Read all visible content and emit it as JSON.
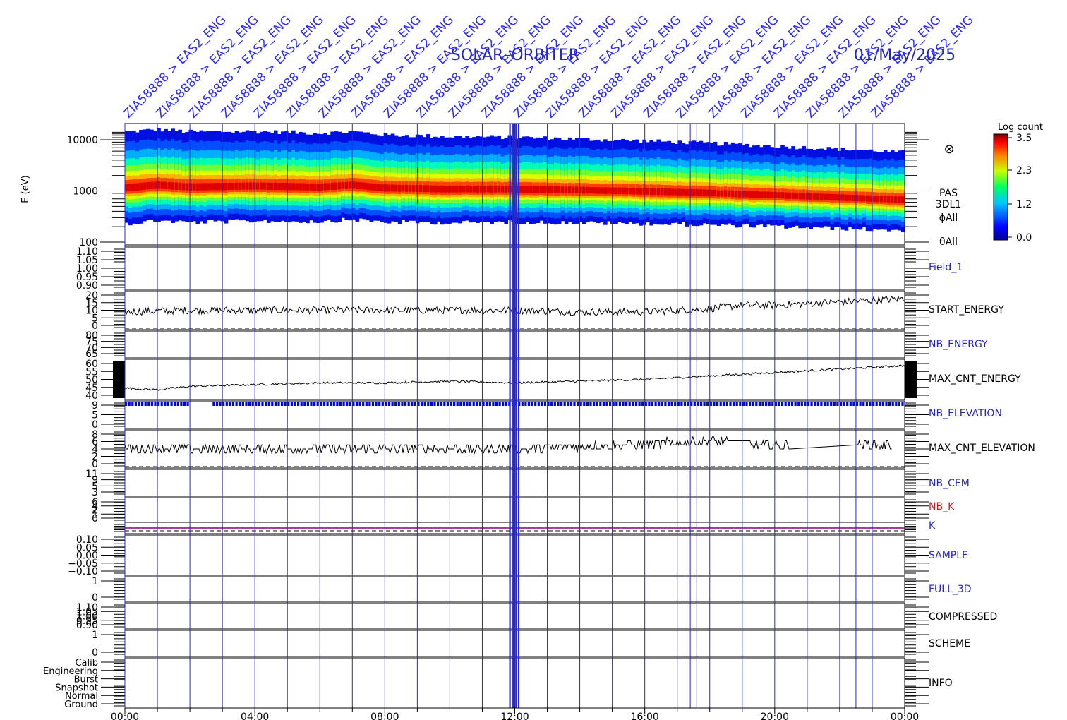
{
  "title": {
    "mission": "SOLAR–ORBITER",
    "date": "01/May/2025"
  },
  "commands": {
    "label": "ZIA58888 > EAS2_ENG",
    "count": 24
  },
  "x_axis": {
    "ticks": [
      "00:00",
      "04:00",
      "08:00",
      "12:00",
      "16:00",
      "20:00",
      "00:00"
    ],
    "minor_ticks_per_hour": 1
  },
  "spectrogram": {
    "ylabel": "E (eV)",
    "yticks": [
      "10000",
      "1000",
      "100"
    ],
    "side_labels": [
      "PAS",
      "3DL1",
      "ϕAll",
      "θAll"
    ],
    "symbol": "⊗",
    "colorbar": {
      "title": "Log count",
      "ticks": [
        "3.5",
        "2.3",
        "1.2",
        "0.0"
      ]
    }
  },
  "panels": [
    {
      "name": "Field_1",
      "color": "#2626b8",
      "ticks": [
        "1.10",
        "1.05",
        "1.00",
        "0.95",
        "0.90"
      ]
    },
    {
      "name": "START_ENERGY",
      "color": "#000000",
      "ticks": [
        "20",
        "15",
        "10",
        "5",
        "0"
      ]
    },
    {
      "name": "NB_ENERGY",
      "color": "#2626b8",
      "ticks": [
        "80",
        "75",
        "70",
        "65"
      ]
    },
    {
      "name": "MAX_CNT_ENERGY",
      "color": "#000000",
      "ticks": [
        "60",
        "55",
        "50",
        "45",
        "40"
      ]
    },
    {
      "name": "NB_ELEVATION",
      "color": "#2626b8",
      "ticks": [
        "9",
        "5",
        "0"
      ]
    },
    {
      "name": "MAX_CNT_ELEVATION",
      "color": "#000000",
      "ticks": [
        "8",
        "6",
        "4",
        "2",
        "0"
      ]
    },
    {
      "name": "NB_CEM",
      "color": "#2626b8",
      "ticks": [
        "11",
        "9",
        "5",
        "3"
      ]
    },
    {
      "name": "NB_K",
      "color": "#c02020",
      "ticks": [
        "6",
        "4",
        "2",
        "1",
        "0"
      ]
    },
    {
      "name": "K",
      "color": "#2626b8",
      "ticks": []
    },
    {
      "name": "SAMPLE",
      "color": "#2626b8",
      "ticks": [
        "0.10",
        "0.05",
        "0.00",
        "−0.05",
        "−0.10"
      ]
    },
    {
      "name": "FULL_3D",
      "color": "#2626b8",
      "ticks": [
        "1",
        "0"
      ]
    },
    {
      "name": "COMPRESSED",
      "color": "#000000",
      "ticks": [
        "1.10",
        "1.05",
        "1.00",
        "0.95",
        "0.90"
      ]
    },
    {
      "name": "SCHEME",
      "color": "#000000",
      "ticks": [
        "1",
        "0"
      ]
    },
    {
      "name": "INFO",
      "color": "#000000",
      "ticks": [
        "Calib",
        "Engineering",
        "Burst",
        "Snapshot",
        "Normal",
        "Ground"
      ]
    }
  ],
  "chart_data": {
    "type": "heatmap",
    "title": "SOLAR–ORBITER 01/May/2025",
    "xlabel": "",
    "ylabel": "E (eV)",
    "xlim": [
      "00:00",
      "24:00"
    ],
    "ylim": [
      100,
      15000
    ],
    "y_scale": "log",
    "color_scale": {
      "label": "Log count",
      "range": [
        0.0,
        3.5
      ]
    },
    "peak_energy_eV": [
      {
        "t": 0,
        "e": 1100
      },
      {
        "t": 1,
        "e": 1250
      },
      {
        "t": 2,
        "e": 1150
      },
      {
        "t": 4,
        "e": 1200
      },
      {
        "t": 6,
        "e": 1150
      },
      {
        "t": 7,
        "e": 1250
      },
      {
        "t": 8,
        "e": 1100
      },
      {
        "t": 10,
        "e": 1050
      },
      {
        "t": 12,
        "e": 1050
      },
      {
        "t": 14,
        "e": 1000
      },
      {
        "t": 16,
        "e": 950
      },
      {
        "t": 18,
        "e": 880
      },
      {
        "t": 20,
        "e": 800
      },
      {
        "t": 22,
        "e": 720
      },
      {
        "t": 24,
        "e": 650
      }
    ],
    "series": [
      {
        "name": "START_ENERGY",
        "x": [
          0,
          2,
          4,
          6,
          8,
          10,
          12,
          14,
          16,
          18,
          19,
          20,
          21,
          22,
          23,
          24
        ],
        "values": [
          9,
          10,
          10,
          10,
          10,
          10,
          10,
          9,
          9,
          11,
          13,
          13,
          14,
          15,
          16,
          17
        ]
      },
      {
        "name": "MAX_CNT_ENERGY",
        "x": [
          0,
          1,
          2,
          4,
          6,
          8,
          10,
          12,
          14,
          16,
          18,
          20,
          22,
          24
        ],
        "values": [
          45,
          44,
          46,
          47,
          48,
          48,
          49,
          48,
          49,
          50,
          52,
          54,
          56,
          58
        ]
      },
      {
        "name": "NB_ELEVATION",
        "x": [
          0,
          24
        ],
        "values": [
          9,
          9
        ]
      },
      {
        "name": "MAX_CNT_ELEVATION",
        "x": [
          0,
          4,
          8,
          12,
          16,
          18,
          19,
          20,
          22,
          24
        ],
        "values": [
          4,
          4,
          4,
          4,
          5,
          6,
          5,
          5,
          5,
          5
        ]
      },
      {
        "name": "K",
        "x": [
          0,
          24
        ],
        "values": [
          1,
          1
        ]
      }
    ]
  }
}
